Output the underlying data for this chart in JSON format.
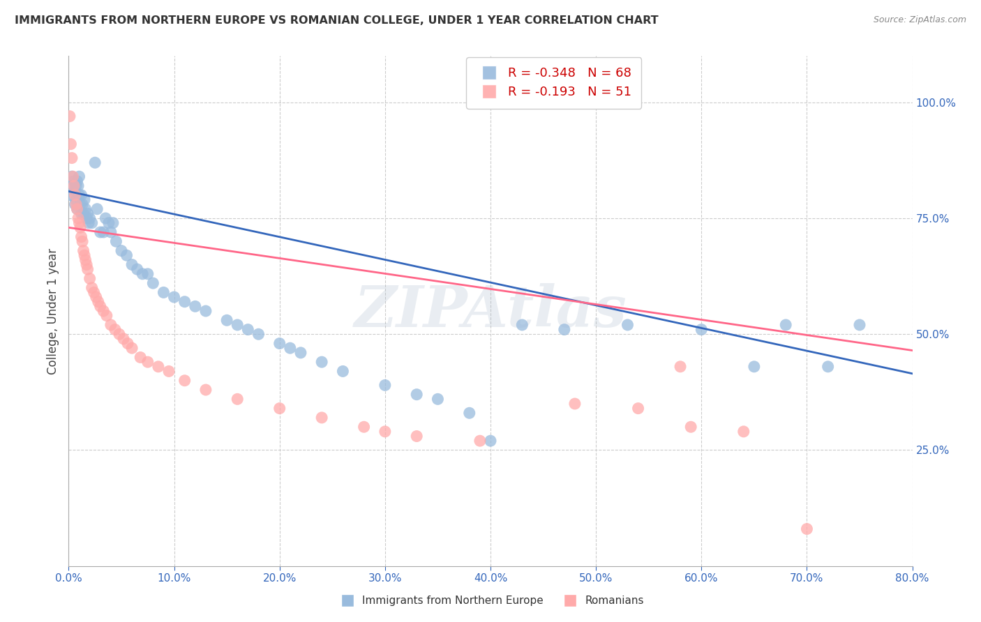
{
  "title": "IMMIGRANTS FROM NORTHERN EUROPE VS ROMANIAN COLLEGE, UNDER 1 YEAR CORRELATION CHART",
  "source": "Source: ZipAtlas.com",
  "ylabel": "College, Under 1 year",
  "legend_label1": "Immigrants from Northern Europe",
  "legend_label2": "Romanians",
  "r1": "-0.348",
  "n1": "68",
  "r2": "-0.193",
  "n2": "51",
  "color1": "#99BBDD",
  "color2": "#FFAAAA",
  "line_color1": "#3366BB",
  "line_color2": "#FF6688",
  "background": "#FFFFFF",
  "watermark": "ZIPAtlas",
  "right_ytick_vals": [
    0.25,
    0.5,
    0.75,
    1.0
  ],
  "xlim": [
    0.0,
    0.8
  ],
  "ylim": [
    0.0,
    1.1
  ],
  "blue_x": [
    0.002,
    0.003,
    0.004,
    0.005,
    0.006,
    0.006,
    0.007,
    0.007,
    0.008,
    0.008,
    0.009,
    0.01,
    0.01,
    0.011,
    0.012,
    0.012,
    0.013,
    0.014,
    0.015,
    0.016,
    0.017,
    0.018,
    0.019,
    0.02,
    0.022,
    0.025,
    0.027,
    0.03,
    0.033,
    0.035,
    0.038,
    0.04,
    0.042,
    0.045,
    0.05,
    0.055,
    0.06,
    0.065,
    0.07,
    0.075,
    0.08,
    0.09,
    0.1,
    0.11,
    0.12,
    0.13,
    0.15,
    0.16,
    0.17,
    0.18,
    0.2,
    0.21,
    0.22,
    0.24,
    0.26,
    0.3,
    0.33,
    0.35,
    0.38,
    0.4,
    0.43,
    0.47,
    0.53,
    0.6,
    0.65,
    0.68,
    0.72,
    0.75
  ],
  "blue_y": [
    0.8,
    0.84,
    0.82,
    0.83,
    0.81,
    0.78,
    0.82,
    0.79,
    0.83,
    0.77,
    0.82,
    0.8,
    0.84,
    0.78,
    0.8,
    0.76,
    0.78,
    0.76,
    0.79,
    0.77,
    0.75,
    0.76,
    0.74,
    0.75,
    0.74,
    0.87,
    0.77,
    0.72,
    0.72,
    0.75,
    0.74,
    0.72,
    0.74,
    0.7,
    0.68,
    0.67,
    0.65,
    0.64,
    0.63,
    0.63,
    0.61,
    0.59,
    0.58,
    0.57,
    0.56,
    0.55,
    0.53,
    0.52,
    0.51,
    0.5,
    0.48,
    0.47,
    0.46,
    0.44,
    0.42,
    0.39,
    0.37,
    0.36,
    0.33,
    0.27,
    0.52,
    0.51,
    0.52,
    0.51,
    0.43,
    0.52,
    0.43,
    0.52
  ],
  "pink_x": [
    0.001,
    0.002,
    0.003,
    0.004,
    0.005,
    0.006,
    0.007,
    0.008,
    0.009,
    0.01,
    0.011,
    0.012,
    0.013,
    0.014,
    0.015,
    0.016,
    0.017,
    0.018,
    0.02,
    0.022,
    0.024,
    0.026,
    0.028,
    0.03,
    0.033,
    0.036,
    0.04,
    0.044,
    0.048,
    0.052,
    0.056,
    0.06,
    0.068,
    0.075,
    0.085,
    0.095,
    0.11,
    0.13,
    0.16,
    0.2,
    0.24,
    0.28,
    0.33,
    0.39,
    0.48,
    0.54,
    0.59,
    0.64,
    0.7,
    0.58,
    0.3
  ],
  "pink_y": [
    0.97,
    0.91,
    0.88,
    0.84,
    0.82,
    0.8,
    0.78,
    0.77,
    0.75,
    0.74,
    0.73,
    0.71,
    0.7,
    0.68,
    0.67,
    0.66,
    0.65,
    0.64,
    0.62,
    0.6,
    0.59,
    0.58,
    0.57,
    0.56,
    0.55,
    0.54,
    0.52,
    0.51,
    0.5,
    0.49,
    0.48,
    0.47,
    0.45,
    0.44,
    0.43,
    0.42,
    0.4,
    0.38,
    0.36,
    0.34,
    0.32,
    0.3,
    0.28,
    0.27,
    0.35,
    0.34,
    0.3,
    0.29,
    0.08,
    0.43,
    0.29
  ]
}
